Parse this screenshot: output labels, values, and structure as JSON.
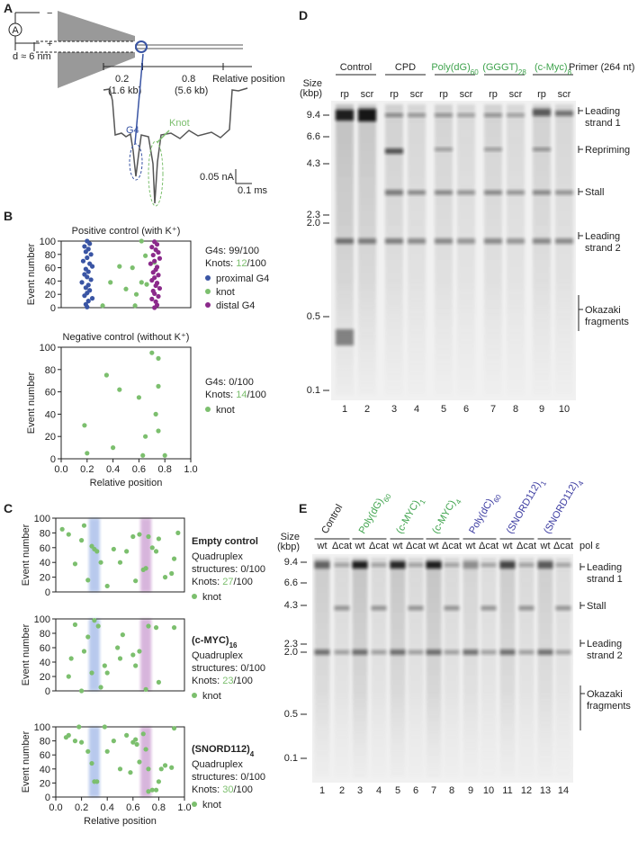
{
  "panel_a": {
    "letter": "A",
    "minus": "−",
    "plus": "+",
    "meter": "A",
    "pore_width": "d ≈ 6 nm",
    "markers": [
      {
        "position": "0.2",
        "length": "(1.6 kb)"
      },
      {
        "position": "0.8",
        "length": "(5.6 kb)"
      }
    ],
    "axis_label": "Relative position",
    "g4_label": "G4",
    "knot_label": "Knot",
    "current_scale": "0.05 nA",
    "time_scale": "0.1 ms"
  },
  "panel_b": {
    "letter": "B"
  },
  "panel_c": {
    "letter": "C"
  },
  "chart_data": [
    {
      "type": "scatter",
      "title": "Positive control (with K⁺)",
      "ylabel": "Event number",
      "xlim": [
        0,
        1
      ],
      "ylim": [
        0,
        100
      ],
      "yticks": [
        0,
        20,
        40,
        60,
        80,
        100
      ],
      "summary": [
        "G4s: 99/100"
      ],
      "knots": {
        "label": "Knots: ",
        "count": 12,
        "total": "/100"
      },
      "series": [
        {
          "name": "proximal G4",
          "color": "#3a55a4",
          "x": [
            0.2,
            0.22,
            0.18,
            0.21,
            0.19,
            0.23,
            0.2,
            0.17,
            0.22,
            0.24,
            0.19,
            0.21,
            0.18,
            0.2,
            0.23,
            0.16,
            0.21,
            0.19,
            0.22,
            0.2,
            0.18,
            0.24,
            0.21,
            0.19,
            0.2
          ],
          "y": [
            100,
            96,
            92,
            88,
            84,
            80,
            75,
            70,
            66,
            62,
            58,
            54,
            50,
            46,
            42,
            38,
            34,
            30,
            26,
            22,
            18,
            14,
            10,
            5,
            1
          ]
        },
        {
          "name": "knot",
          "color": "#7cbf6e",
          "x": [
            0.62,
            0.65,
            0.55,
            0.45,
            0.38,
            0.5,
            0.58,
            0.62,
            0.32,
            0.57,
            0.66,
            0.72
          ],
          "y": [
            100,
            78,
            60,
            62,
            38,
            28,
            20,
            38,
            3,
            3,
            35,
            68
          ]
        },
        {
          "name": "distal G4",
          "color": "#8b2a8b",
          "x": [
            0.72,
            0.74,
            0.7,
            0.73,
            0.75,
            0.71,
            0.76,
            0.72,
            0.69,
            0.74,
            0.73,
            0.71,
            0.75,
            0.72,
            0.7,
            0.74,
            0.73,
            0.76,
            0.71,
            0.72,
            0.75,
            0.7,
            0.73,
            0.74,
            0.72
          ],
          "y": [
            99,
            95,
            91,
            87,
            83,
            79,
            74,
            70,
            66,
            61,
            57,
            53,
            49,
            45,
            41,
            37,
            33,
            29,
            25,
            21,
            17,
            13,
            9,
            4,
            0
          ]
        }
      ]
    },
    {
      "type": "scatter",
      "title": "Negative control (without K⁺)",
      "ylabel": "Event number",
      "xlabel": "Relative position",
      "xlim": [
        0,
        1
      ],
      "ylim": [
        0,
        100
      ],
      "yticks": [
        0,
        20,
        40,
        60,
        80,
        100
      ],
      "xticks": [
        {
          "value": 0,
          "label": "0.0"
        },
        0.2,
        0.4,
        0.6,
        0.8,
        {
          "value": 1,
          "label": "1.0"
        }
      ],
      "summary": [
        "G4s: 0/100"
      ],
      "knots": {
        "label": "Knots: ",
        "count": 14,
        "total": "/100"
      },
      "series": [
        {
          "name": "knot",
          "color": "#7cbf6e",
          "x": [
            0.18,
            0.2,
            0.35,
            0.4,
            0.45,
            0.6,
            0.65,
            0.63,
            0.7,
            0.75,
            0.75,
            0.73,
            0.75,
            0.8
          ],
          "y": [
            30,
            5,
            75,
            10,
            62,
            55,
            20,
            3,
            95,
            90,
            65,
            40,
            25,
            3
          ]
        }
      ]
    },
    {
      "type": "scatter",
      "title": "Empty control",
      "ylabel": "Event number",
      "xlim": [
        0,
        1
      ],
      "ylim": [
        0,
        100
      ],
      "yticks": [
        0,
        20,
        40,
        60,
        80,
        100
      ],
      "bands": [
        {
          "x": 0.3,
          "color": "#7f9ee0"
        },
        {
          "x": 0.7,
          "color": "#b879c0"
        }
      ],
      "summary": [
        "Quadruplex",
        "structures: 0/100"
      ],
      "knots": {
        "label": "Knots: ",
        "count": 27,
        "total": "/100"
      },
      "series": [
        {
          "name": "knot",
          "color": "#7cbf6e",
          "x": [
            0.05,
            0.1,
            0.15,
            0.2,
            0.22,
            0.25,
            0.28,
            0.3,
            0.32,
            0.35,
            0.4,
            0.45,
            0.5,
            0.55,
            0.6,
            0.62,
            0.65,
            0.68,
            0.7,
            0.72,
            0.75,
            0.78,
            0.8,
            0.85,
            0.9,
            0.92,
            0.95
          ],
          "y": [
            85,
            78,
            38,
            70,
            90,
            16,
            62,
            58,
            55,
            40,
            8,
            58,
            40,
            55,
            75,
            15,
            78,
            30,
            32,
            75,
            60,
            55,
            72,
            20,
            25,
            45,
            80
          ]
        }
      ]
    },
    {
      "type": "scatter",
      "title": "(c-MYC)",
      "title_sub": "16",
      "ylabel": "Event number",
      "xlim": [
        0,
        1
      ],
      "ylim": [
        0,
        100
      ],
      "yticks": [
        0,
        20,
        40,
        60,
        80,
        100
      ],
      "bands": [
        {
          "x": 0.3,
          "color": "#7f9ee0"
        },
        {
          "x": 0.7,
          "color": "#b879c0"
        }
      ],
      "summary": [
        "Quadruplex",
        "structures: 0/100"
      ],
      "knots": {
        "label": "Knots: ",
        "count": 23,
        "total": "/100"
      },
      "series": [
        {
          "name": "knot",
          "color": "#7cbf6e",
          "x": [
            0.1,
            0.12,
            0.15,
            0.2,
            0.22,
            0.25,
            0.28,
            0.3,
            0.33,
            0.35,
            0.38,
            0.4,
            0.48,
            0.5,
            0.52,
            0.6,
            0.62,
            0.65,
            0.7,
            0.72,
            0.78,
            0.8,
            0.92
          ],
          "y": [
            20,
            45,
            92,
            0,
            55,
            75,
            25,
            98,
            90,
            5,
            35,
            25,
            60,
            45,
            78,
            50,
            35,
            55,
            2,
            90,
            88,
            12,
            88
          ]
        }
      ]
    },
    {
      "type": "scatter",
      "title": "(SNORD112)",
      "title_sub": "4",
      "ylabel": "Event number",
      "xlabel": "Relative position",
      "xlim": [
        0,
        1
      ],
      "ylim": [
        0,
        100
      ],
      "yticks": [
        0,
        20,
        40,
        60,
        80,
        100
      ],
      "xticks": [
        {
          "value": 0,
          "label": "0.0"
        },
        0.2,
        0.4,
        0.6,
        0.8,
        {
          "value": 1,
          "label": "1.0"
        }
      ],
      "bands": [
        {
          "x": 0.3,
          "color": "#7f9ee0"
        },
        {
          "x": 0.7,
          "color": "#b879c0"
        }
      ],
      "summary": [
        "Quadruplex",
        "structures: 0/100"
      ],
      "knots": {
        "label": "Knots: ",
        "count": 30,
        "total": "/100"
      },
      "series": [
        {
          "name": "knot",
          "color": "#7cbf6e",
          "x": [
            0.08,
            0.1,
            0.15,
            0.18,
            0.2,
            0.25,
            0.28,
            0.3,
            0.32,
            0.38,
            0.4,
            0.45,
            0.5,
            0.55,
            0.58,
            0.6,
            0.62,
            0.63,
            0.65,
            0.68,
            0.7,
            0.72,
            0.72,
            0.75,
            0.78,
            0.8,
            0.82,
            0.85,
            0.9,
            0.92
          ],
          "y": [
            85,
            88,
            80,
            100,
            78,
            65,
            48,
            22,
            22,
            100,
            65,
            80,
            40,
            88,
            35,
            78,
            82,
            75,
            50,
            90,
            68,
            8,
            40,
            10,
            10,
            22,
            40,
            45,
            42,
            98
          ]
        }
      ]
    }
  ],
  "panel_d": {
    "letter": "D",
    "size_label": [
      "Size",
      "(kbp)"
    ],
    "sizes": [
      "9.4",
      "6.6",
      "4.3",
      "2.3",
      "2.0",
      "0.5",
      "0.1"
    ],
    "groups": [
      {
        "text": "Control",
        "color": "#222222"
      },
      {
        "text": "CPD",
        "color": "#222222"
      },
      {
        "text": "Poly(dG)",
        "sub": "60",
        "color": "#3fa34d"
      },
      {
        "text": "(GGGT)",
        "sub": "28",
        "color": "#3fa34d"
      },
      {
        "text": "(c-Myc)",
        "sub": "8",
        "color": "#3fa34d"
      }
    ],
    "primer": "Primer (264 nt)",
    "lane_types": [
      "rp",
      "scr",
      "rp",
      "scr",
      "rp",
      "scr",
      "rp",
      "scr",
      "rp",
      "scr"
    ],
    "features": [
      [
        "Leading",
        "strand 1"
      ],
      [
        "Repriming"
      ],
      [
        "Stall"
      ],
      [
        "Leading",
        "strand 2"
      ],
      [
        "Okazaki",
        "fragments"
      ]
    ],
    "lanes": [
      "1",
      "2",
      "3",
      "4",
      "5",
      "6",
      "7",
      "8",
      "9",
      "10"
    ]
  },
  "panel_e": {
    "letter": "E",
    "size_label": [
      "Size",
      "(kbp)"
    ],
    "sizes": [
      "9.4",
      "6.6",
      "4.3",
      "2.3",
      "2.0",
      "0.5",
      "0.1"
    ],
    "groups": [
      {
        "text": "Control",
        "color": "#222222"
      },
      {
        "text": "Poly(dG)",
        "sub": "60",
        "color": "#3fa34d"
      },
      {
        "text": "(c-MYC)",
        "sub": "1",
        "color": "#3fa34d"
      },
      {
        "text": "(c-MYC)",
        "sub": "4",
        "color": "#3fa34d"
      },
      {
        "text": "Poly(dC)",
        "sub": "60",
        "color": "#3a3aa0"
      },
      {
        "text": "(SNORD112)",
        "sub": "1",
        "color": "#3a3aa0"
      },
      {
        "text": "(SNORD112)",
        "sub": "4",
        "color": "#3a3aa0"
      }
    ],
    "lane_types": [
      "wt",
      "Δcat",
      "wt",
      "Δcat",
      "wt",
      "Δcat",
      "wt",
      "Δcat",
      "wt",
      "Δcat",
      "wt",
      "Δcat",
      "wt",
      "Δcat"
    ],
    "enzyme": "pol ε",
    "features": [
      [
        "Leading",
        "strand 1"
      ],
      [
        "Stall"
      ],
      [
        "Leading",
        "strand 2"
      ],
      [
        "Okazaki",
        "fragments"
      ]
    ],
    "lanes": [
      "1",
      "2",
      "3",
      "4",
      "5",
      "6",
      "7",
      "8",
      "9",
      "10",
      "11",
      "12",
      "13",
      "14"
    ]
  }
}
